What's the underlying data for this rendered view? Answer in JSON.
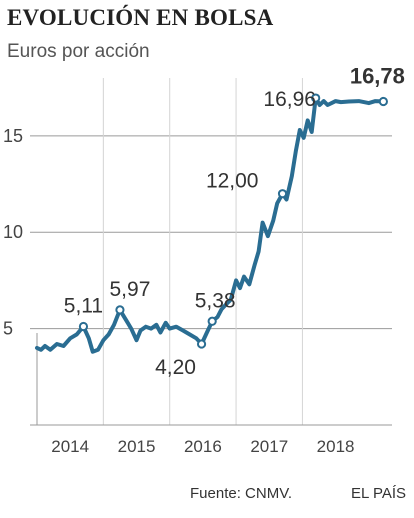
{
  "chart_data": {
    "type": "line",
    "title": "EVOLUCIÓN EN BOLSA",
    "subtitle": "Euros por acción",
    "xlabel": "",
    "ylabel": "",
    "ylim": [
      0,
      18
    ],
    "yticks": [
      {
        "value": 5,
        "label": "5"
      },
      {
        "value": 10,
        "label": "10"
      },
      {
        "value": 15,
        "label": "15"
      }
    ],
    "xlim": [
      2013.5,
      2018.85
    ],
    "xticks": [
      {
        "value": 2014,
        "label": "2014"
      },
      {
        "value": 2015,
        "label": "2015"
      },
      {
        "value": 2016,
        "label": "2016"
      },
      {
        "value": 2017,
        "label": "2017"
      },
      {
        "value": 2018,
        "label": "2018"
      }
    ],
    "year_dividers": [
      2014.5,
      2015.5,
      2016.5,
      2017.5
    ],
    "grid": false,
    "series_color": "#2a6d92",
    "x": [
      2013.5,
      2013.56,
      2013.62,
      2013.7,
      2013.8,
      2013.9,
      2014.0,
      2014.1,
      2014.2,
      2014.28,
      2014.34,
      2014.42,
      2014.5,
      2014.58,
      2014.66,
      2014.75,
      2014.85,
      2014.92,
      2015.0,
      2015.06,
      2015.14,
      2015.22,
      2015.3,
      2015.36,
      2015.44,
      2015.5,
      2015.6,
      2015.7,
      2015.8,
      2015.9,
      2015.98,
      2016.06,
      2016.14,
      2016.22,
      2016.28,
      2016.36,
      2016.42,
      2016.5,
      2016.56,
      2016.62,
      2016.7,
      2016.78,
      2016.84,
      2016.9,
      2016.98,
      2017.06,
      2017.12,
      2017.2,
      2017.26,
      2017.34,
      2017.4,
      2017.46,
      2017.52,
      2017.58,
      2017.64,
      2017.7,
      2017.76,
      2017.82,
      2017.88,
      2017.94,
      2018.0,
      2018.08,
      2018.2,
      2018.35,
      2018.5,
      2018.6,
      2018.72
    ],
    "values": [
      4.0,
      3.9,
      4.1,
      3.9,
      4.2,
      4.1,
      4.5,
      4.7,
      5.11,
      4.5,
      3.8,
      3.9,
      4.4,
      4.7,
      5.2,
      5.97,
      5.4,
      5.0,
      4.4,
      4.9,
      5.1,
      5.0,
      5.2,
      4.8,
      5.3,
      5.0,
      5.1,
      4.9,
      4.7,
      4.5,
      4.2,
      4.8,
      5.38,
      5.6,
      6.0,
      6.3,
      6.5,
      7.5,
      7.1,
      7.7,
      7.3,
      8.3,
      9.0,
      10.5,
      9.8,
      10.6,
      11.5,
      12.0,
      11.7,
      12.9,
      14.2,
      15.3,
      14.9,
      15.8,
      15.2,
      16.96,
      16.6,
      16.8,
      16.6,
      16.7,
      16.8,
      16.75,
      16.78,
      16.8,
      16.7,
      16.8,
      16.78
    ],
    "annotations": [
      {
        "label": "5,11",
        "x": 2014.2,
        "y": 5.11,
        "bold": false
      },
      {
        "label": "5,97",
        "x": 2014.75,
        "y": 5.97,
        "bold": false
      },
      {
        "label": "4,20",
        "x": 2015.98,
        "y": 4.2,
        "bold": false
      },
      {
        "label": "5,38",
        "x": 2016.14,
        "y": 5.38,
        "bold": false
      },
      {
        "label": "12,00",
        "x": 2017.2,
        "y": 12.0,
        "bold": false
      },
      {
        "label": "16,96",
        "x": 2017.7,
        "y": 16.96,
        "bold": false
      },
      {
        "label": "16,78",
        "x": 2018.72,
        "y": 16.78,
        "bold": true
      }
    ]
  },
  "footer": {
    "source": "Fuente: CNMV.",
    "brand": "EL PAÍS"
  }
}
